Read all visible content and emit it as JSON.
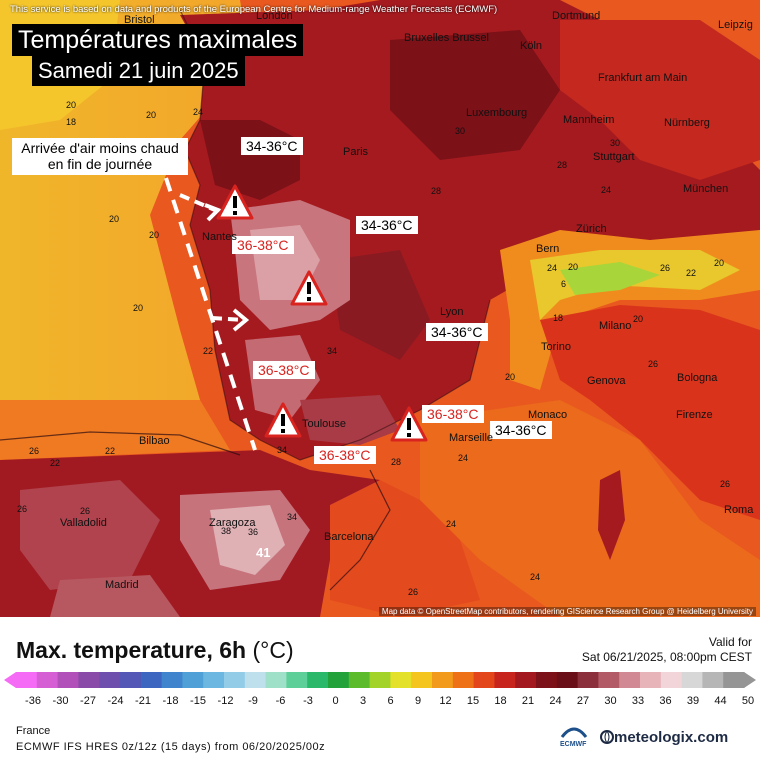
{
  "map": {
    "disclaimer": "This service is based on data and products of the European Centre for Medium-range Weather Forecasts (ECMWF)",
    "title": "Températures maximales",
    "subtitle": "Samedi 21 juin 2025",
    "note": "Arrivée d'air moins chaud en fin de journée",
    "attribution": "Map data © OpenStreetMap contributors, rendering GIScience Research Group @ Heidelberg University",
    "temp_labels": [
      {
        "text": "34-36°C",
        "color": "black"
      },
      {
        "text": "34-36°C",
        "color": "black"
      },
      {
        "text": "34-36°C",
        "color": "black"
      },
      {
        "text": "34-36°C",
        "color": "black"
      },
      {
        "text": "36-38°C",
        "color": "red"
      },
      {
        "text": "36-38°C",
        "color": "red"
      },
      {
        "text": "36-38°C",
        "color": "red"
      },
      {
        "text": "36-38°C",
        "color": "red"
      }
    ],
    "cities": [
      "Bristol",
      "London",
      "Dortmund",
      "Leipzig",
      "Bruxelles Brussel",
      "Köln",
      "Frankfurt am Main",
      "Luxembourg",
      "Mannheim",
      "Nürnberg",
      "Paris",
      "Stuttgart",
      "München",
      "Nantes",
      "Zürich",
      "Bern",
      "Lyon",
      "Milano",
      "Torino",
      "Genova",
      "Bologna",
      "Monaco",
      "Firenze",
      "Toulouse",
      "Marseille",
      "Bilbao",
      "Valladolid",
      "Zaragoza",
      "Barcelona",
      "Madrid",
      "Roma"
    ],
    "numbers": [
      "20",
      "18",
      "20",
      "24",
      "20",
      "20",
      "20",
      "22",
      "22",
      "22",
      "26",
      "26",
      "26",
      "30",
      "30",
      "28",
      "24",
      "26",
      "20",
      "24",
      "22",
      "20",
      "18",
      "6",
      "20",
      "20",
      "26",
      "24",
      "26",
      "36",
      "38",
      "41",
      "34",
      "34",
      "24",
      "28",
      "28",
      "26",
      "24",
      "34"
    ]
  },
  "legend": {
    "title": "Max. temperature, 6h",
    "unit": "(°C)",
    "valid_label": "Valid for",
    "valid_time": "Sat 06/21/2025, 08:00pm CEST",
    "ticks": [
      "-36",
      "-30",
      "-27",
      "-24",
      "-21",
      "-18",
      "-15",
      "-12",
      "-9",
      "-6",
      "-3",
      "0",
      "3",
      "6",
      "9",
      "12",
      "15",
      "18",
      "21",
      "24",
      "27",
      "30",
      "33",
      "36",
      "39",
      "44",
      "50"
    ],
    "colors": [
      "#f56bf5",
      "#d55ed5",
      "#b050b8",
      "#8a4ba8",
      "#6f4fae",
      "#5457b5",
      "#3c66c0",
      "#3f84cc",
      "#4ea0d7",
      "#6cb7e1",
      "#93cce7",
      "#bde0ec",
      "#9fe0c8",
      "#5fcf9a",
      "#2bb86a",
      "#23a23c",
      "#5bbb2a",
      "#a3d328",
      "#e3e12a",
      "#f4c41f",
      "#f29a1c",
      "#ee7118",
      "#e4461c",
      "#c8241e",
      "#a3181e",
      "#7c1119",
      "#6a0e18",
      "#8c2f3c",
      "#b25a66",
      "#d18a93",
      "#e6b4b9",
      "#f2d5d8",
      "#d7d7d7",
      "#b6b6b6",
      "#959595"
    ],
    "region": "France",
    "model": "ECMWF IFS HRES 0z/12z (15 days) from 06/20/2025/00z",
    "ecmwf_logo": "ECMWF",
    "brand": "meteologix.com"
  }
}
